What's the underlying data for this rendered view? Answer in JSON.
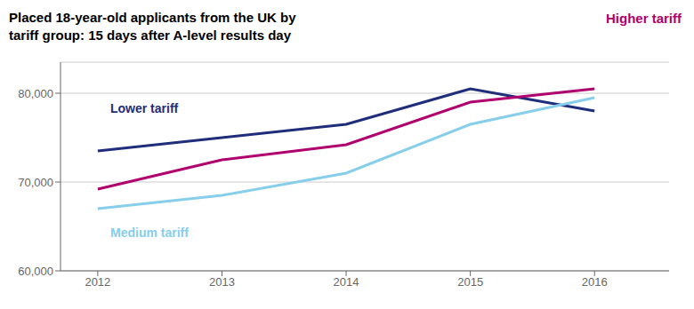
{
  "chart_data": {
    "type": "line",
    "title": "Placed 18-year-old applicants from the UK by\ntariff group: 15 days after A-level results day",
    "x": [
      2012,
      2013,
      2014,
      2015,
      2016
    ],
    "series": [
      {
        "name": "Lower tariff",
        "color": "#1f2d7b",
        "values": [
          73500,
          75000,
          76500,
          80500,
          78000
        ]
      },
      {
        "name": "Higher tariff",
        "color": "#b0006d",
        "values": [
          69200,
          72500,
          74200,
          79000,
          80500
        ]
      },
      {
        "name": "Medium tariff",
        "color": "#87ceeb",
        "values": [
          67000,
          68500,
          71000,
          76500,
          79500
        ]
      }
    ],
    "xlim": [
      2011.7,
      2016.6
    ],
    "xticks": [
      2012,
      2013,
      2014,
      2015,
      2016
    ],
    "ylim": [
      60000,
      83500
    ],
    "yticks": [
      {
        "value": 60000,
        "label": "60,000"
      },
      {
        "value": 70000,
        "label": "70,000"
      },
      {
        "value": 80000,
        "label": "80,000"
      }
    ],
    "grid": true
  }
}
